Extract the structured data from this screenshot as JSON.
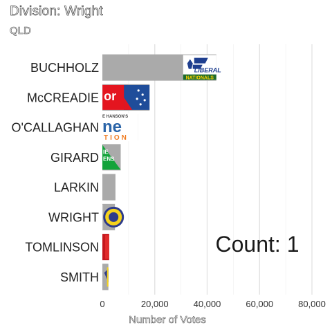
{
  "chart_data": {
    "type": "bar",
    "orientation": "horizontal",
    "title": "Division: Wright",
    "subtitle": "QLD",
    "xlabel": "Number of Votes",
    "ylabel": "",
    "xlim": [
      0,
      85000
    ],
    "x_ticks": [
      0,
      20000,
      40000,
      60000,
      80000
    ],
    "x_tick_labels": [
      "0",
      "20,000",
      "40,000",
      "60,000",
      "80,000"
    ],
    "grid": "vertical major gridlines",
    "categories": [
      "BUCHHOLZ",
      "McCREADIE",
      "O'CALLAGHAN",
      "GIRARD",
      "LARKIN",
      "WRIGHT",
      "TOMLINSON",
      "SMITH"
    ],
    "values": [
      43500,
      18000,
      13500,
      7000,
      5000,
      4800,
      2600,
      2300
    ],
    "bar_colors": [
      "#aaaaaa",
      "#aaaaaa",
      "#aaaaaa",
      "#aaaaaa",
      "#aaaaaa",
      "#aaaaaa",
      "#c4161c",
      "#aaaaaa"
    ],
    "annotation": "Count:  1",
    "logos": [
      {
        "category": "BUCHHOLZ",
        "icon": "liberal-nationals-logo",
        "text_top": "LIBERAL",
        "text_bottom": "NATIONALS"
      },
      {
        "category": "McCREADIE",
        "icon": "labor-logo",
        "text": "or"
      },
      {
        "category": "O'CALLAGHAN",
        "icon": "one-nation-logo",
        "text_top": "E HANSON'S",
        "text_main": "ne",
        "text_bottom": "TION"
      },
      {
        "category": "GIRARD",
        "icon": "greens-logo",
        "text_top": "IE",
        "text_bottom": "ENS"
      },
      {
        "category": "WRIGHT",
        "icon": "circular-party-logo"
      },
      {
        "category": "TOMLINSON",
        "icon": "red-party-logo"
      },
      {
        "category": "SMITH",
        "icon": "small-party-logo"
      }
    ]
  }
}
